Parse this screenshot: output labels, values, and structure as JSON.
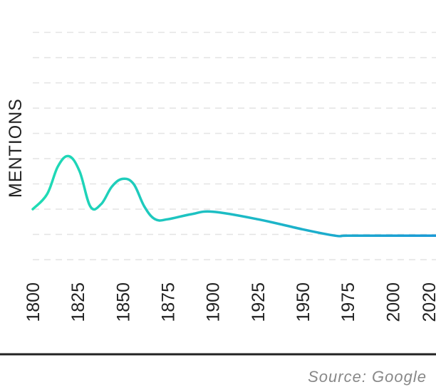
{
  "chart_data": {
    "type": "line",
    "ylabel": "MENTIONS",
    "xlabel": "",
    "title": "",
    "source": "Source: Google",
    "x_ticks": [
      "1800",
      "1825",
      "1850",
      "1875",
      "1900",
      "1925",
      "1950",
      "1975",
      "2000",
      "2020"
    ],
    "xlim": [
      1800,
      2024
    ],
    "ylim": [
      0,
      10
    ],
    "grid": true,
    "gradient_colors": [
      "#1fdcb4",
      "#1a9ad6"
    ],
    "series": [
      {
        "x": [
          1800,
          1808,
          1814,
          1820,
          1826,
          1832,
          1838,
          1844,
          1850,
          1856,
          1862,
          1868,
          1875,
          1888,
          1900,
          1925,
          1950,
          1968,
          1975,
          2000,
          2024
        ],
        "values": [
          2.0,
          2.6,
          3.7,
          4.1,
          3.5,
          2.1,
          2.2,
          2.9,
          3.2,
          3.0,
          2.1,
          1.6,
          1.6,
          1.8,
          1.9,
          1.6,
          1.2,
          0.95,
          0.95,
          0.95,
          0.95
        ]
      }
    ]
  }
}
